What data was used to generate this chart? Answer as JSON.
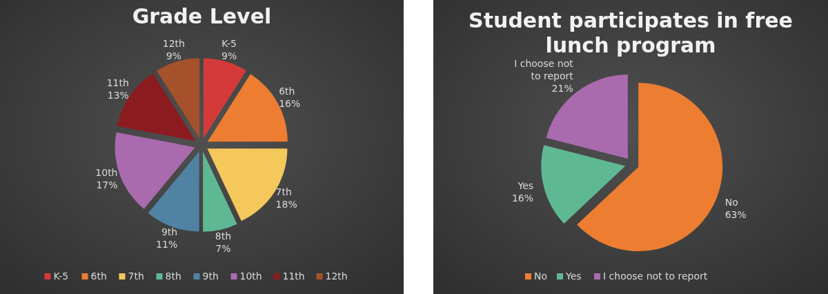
{
  "chart_data": [
    {
      "type": "pie",
      "title": "Grade Level",
      "categories": [
        "K-5",
        "6th",
        "7th",
        "8th",
        "9th",
        "10th",
        "11th",
        "12th"
      ],
      "values": [
        9,
        16,
        18,
        7,
        11,
        17,
        13,
        9
      ],
      "value_labels": [
        "9%",
        "16%",
        "18%",
        "7%",
        "11%",
        "17%",
        "13%",
        "9%"
      ],
      "colors": [
        "#d43a3a",
        "#ed7d31",
        "#f4c85a",
        "#5fb894",
        "#4f82a3",
        "#a96bad",
        "#8c1b1f",
        "#a5512b"
      ],
      "legend": "bottom"
    },
    {
      "type": "pie",
      "title": "Student participates in free lunch program",
      "categories": [
        "No",
        "Yes",
        "I choose not to report"
      ],
      "values": [
        63,
        16,
        21
      ],
      "value_labels": [
        "63%",
        "16%",
        "21%"
      ],
      "colors": [
        "#ed7d31",
        "#5fb894",
        "#a96bad"
      ],
      "legend": "bottom"
    }
  ]
}
